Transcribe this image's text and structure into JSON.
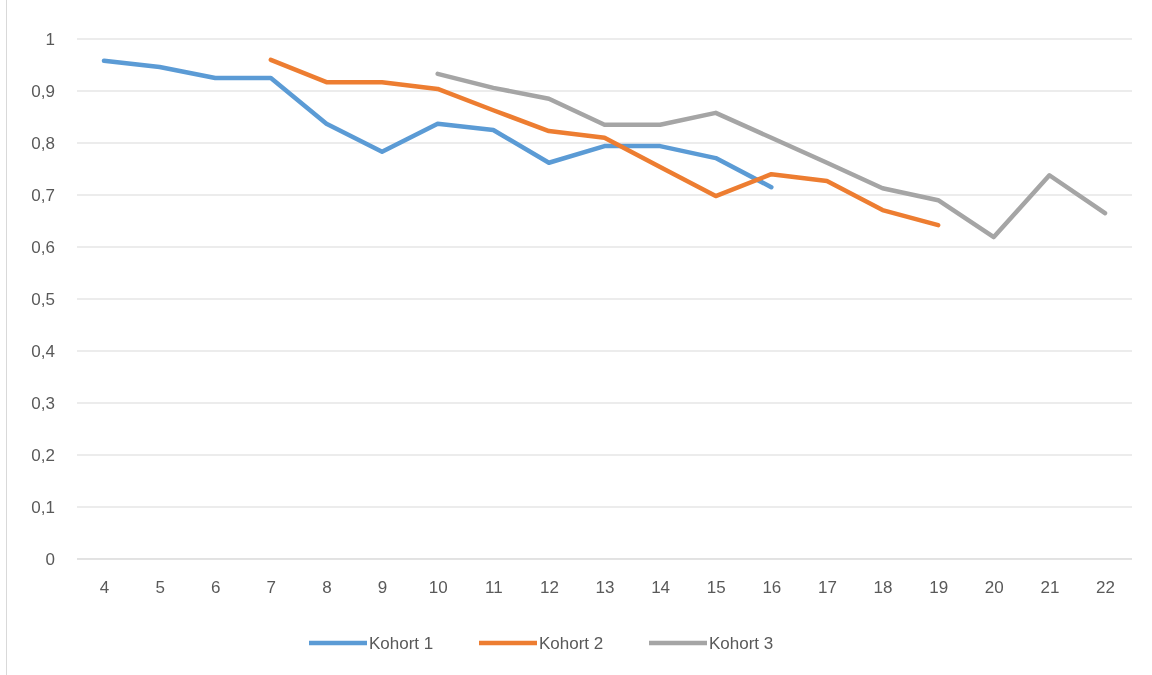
{
  "chart_data": {
    "type": "line",
    "categories": [
      "4",
      "5",
      "6",
      "7",
      "8",
      "9",
      "10",
      "11",
      "12",
      "13",
      "14",
      "15",
      "16",
      "17",
      "18",
      "19",
      "20",
      "21",
      "22"
    ],
    "series": [
      {
        "name": "Kohort 1",
        "color": "#5b9bd5",
        "values": [
          0.958,
          0.946,
          0.925,
          0.925,
          0.837,
          0.783,
          0.837,
          0.825,
          0.762,
          0.794,
          0.794,
          0.771,
          0.715,
          null,
          null,
          null,
          null,
          null,
          null
        ]
      },
      {
        "name": "Kohort 2",
        "color": "#ed7d31",
        "values": [
          null,
          null,
          null,
          0.96,
          0.917,
          0.917,
          0.904,
          0.863,
          0.823,
          0.81,
          0.754,
          0.698,
          0.74,
          0.727,
          0.671,
          0.642,
          null,
          null,
          null
        ]
      },
      {
        "name": "Kohort 3",
        "color": "#a5a5a5",
        "values": [
          null,
          null,
          null,
          null,
          null,
          null,
          0.933,
          0.906,
          0.885,
          0.835,
          0.835,
          0.858,
          0.81,
          0.762,
          0.713,
          0.69,
          0.619,
          0.738,
          0.665
        ]
      }
    ],
    "ylim": [
      0,
      1
    ],
    "yticks": [
      0,
      {
        "value": 0.1,
        "label": "0,1"
      },
      {
        "value": 0.2,
        "label": "0,2"
      },
      {
        "value": 0.3,
        "label": "0,3"
      },
      {
        "value": 0.4,
        "label": "0,4"
      },
      {
        "value": 0.5,
        "label": "0,5"
      },
      {
        "value": 0.6,
        "label": "0,6"
      },
      {
        "value": 0.7,
        "label": "0,7"
      },
      {
        "value": 0.8,
        "label": "0,8"
      },
      {
        "value": 0.9,
        "label": "0,9"
      },
      1
    ],
    "grid": "y",
    "legend": "bottom",
    "marker": "none",
    "line_style": "solid"
  }
}
